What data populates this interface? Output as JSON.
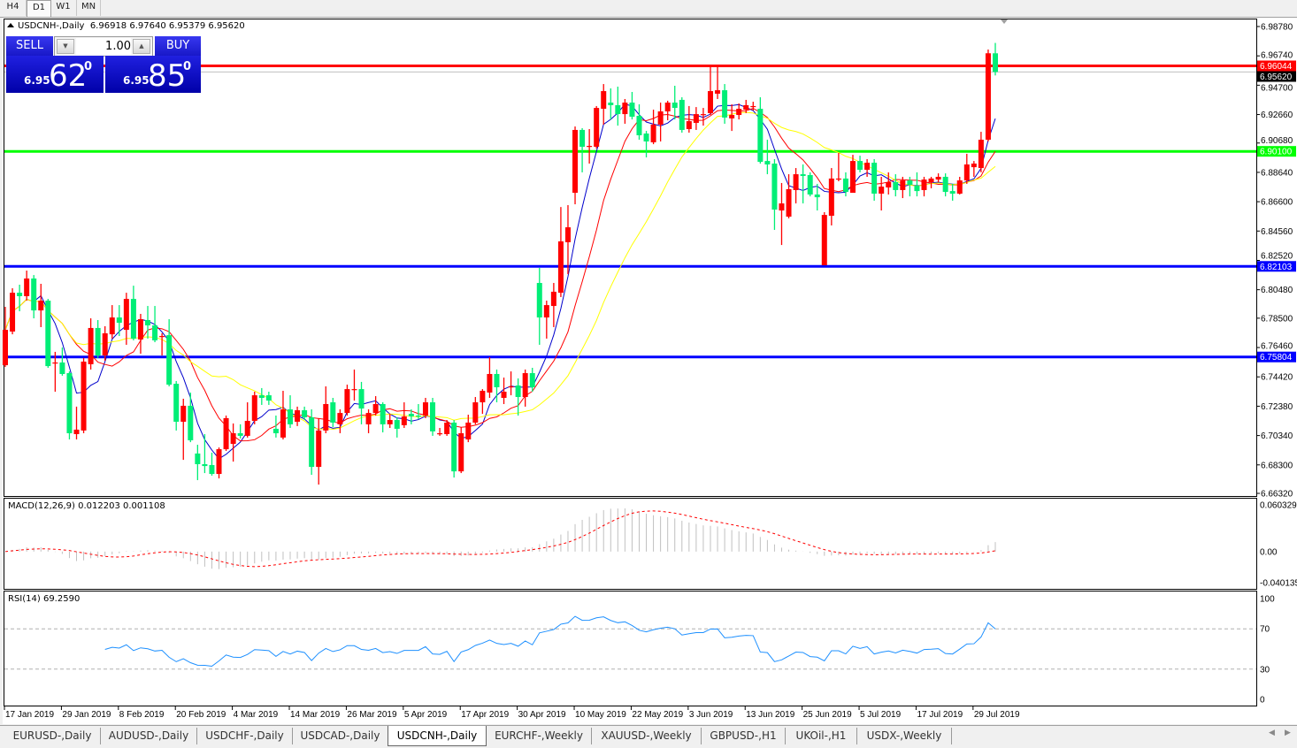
{
  "timeframes": [
    "H4",
    "D1",
    "W1",
    "MN"
  ],
  "active_timeframe": "D1",
  "chart_header": {
    "symbol": "USDCNH-,Daily",
    "ohlc_text": "6.96918 6.97640 6.95379 6.95620"
  },
  "trade_panel": {
    "sell_label": "SELL",
    "buy_label": "BUY",
    "lot": "1.00",
    "sell_price": {
      "prefix": "6.95",
      "big": "62",
      "sup": "0"
    },
    "buy_price": {
      "prefix": "6.95",
      "big": "85",
      "sup": "0"
    }
  },
  "indicators": {
    "macd_label": "MACD(12,26,9) 0.012203 0.001108",
    "rsi_label": "RSI(14) 69.2590"
  },
  "colors": {
    "up": "#ff0000",
    "down": "#00ee76",
    "ma_fast": "#0000cc",
    "ma_mid": "#ff0000",
    "ma_slow": "#ffff00",
    "macd_hist": "#c0c0c0",
    "macd_signal": "#ff0000",
    "rsi": "#1e90ff"
  },
  "chart_data": {
    "type": "candlestick",
    "symbol": "USDCNH-",
    "timeframe": "Daily",
    "ylim": [
      6.6632,
      6.9878
    ],
    "price_ticks": [
      "6.98780",
      "6.96740",
      "6.94700",
      "6.92660",
      "6.90680",
      "6.88640",
      "6.86600",
      "6.84560",
      "6.82520",
      "6.80480",
      "6.78500",
      "6.76460",
      "6.74420",
      "6.72380",
      "6.70340",
      "6.68300",
      "6.66320"
    ],
    "date_labels": [
      "17 Jan 2019",
      "29 Jan 2019",
      "8 Feb 2019",
      "20 Feb 2019",
      "4 Mar 2019",
      "14 Mar 2019",
      "26 Mar 2019",
      "5 Apr 2019",
      "17 Apr 2019",
      "30 Apr 2019",
      "10 May 2019",
      "22 May 2019",
      "3 Jun 2019",
      "13 Jun 2019",
      "25 Jun 2019",
      "5 Jul 2019",
      "17 Jul 2019",
      "29 Jul 2019"
    ],
    "levels": [
      {
        "price": "6.96044",
        "color": "#ff0000",
        "text_color": "#ffffff"
      },
      {
        "price": "6.95620",
        "color": "#000000",
        "text_color": "#ffffff",
        "line": "#c0c0c0"
      },
      {
        "price": "6.90100",
        "color": "#00ff00",
        "text_color": "#ffffff"
      },
      {
        "price": "6.82103",
        "color": "#0000ff",
        "text_color": "#ffffff"
      },
      {
        "price": "6.75804",
        "color": "#0000ff",
        "text_color": "#ffffff"
      }
    ],
    "macd": {
      "params": [
        12,
        26,
        9
      ],
      "ylim": [
        -0.040135,
        0.060329
      ],
      "tick_labels": [
        "0.060329",
        "0.00",
        "-0.040135"
      ]
    },
    "rsi": {
      "period": 14,
      "ylim": [
        0,
        100
      ],
      "levels": [
        30,
        70
      ],
      "tick_labels": [
        "100",
        "70",
        "30",
        "0"
      ]
    },
    "candles_ohlc": [
      [
        6.7523,
        6.7929,
        6.7511,
        6.7769
      ],
      [
        6.7757,
        6.8058,
        6.7738,
        6.8027
      ],
      [
        6.8027,
        6.8083,
        6.7898,
        6.8003
      ],
      [
        6.8003,
        6.8181,
        6.7972,
        6.8126
      ],
      [
        6.8126,
        6.815,
        6.7849,
        6.7904
      ],
      [
        6.7904,
        6.8089,
        6.7788,
        6.7972
      ],
      [
        6.7972,
        6.7984,
        6.7505,
        6.7517
      ],
      [
        6.7536,
        6.7616,
        6.7339,
        6.7542
      ],
      [
        6.7542,
        6.7646,
        6.745,
        6.7462
      ],
      [
        6.7468,
        6.748,
        6.7007,
        6.705
      ],
      [
        6.7044,
        6.7235,
        6.7007,
        6.7075
      ],
      [
        6.7069,
        6.7573,
        6.705,
        6.7548
      ],
      [
        6.753,
        6.7849,
        6.7493,
        6.7782
      ],
      [
        6.7782,
        6.7837,
        6.7573,
        6.7591
      ],
      [
        6.7591,
        6.7794,
        6.7554,
        6.7745
      ],
      [
        6.7738,
        6.7941,
        6.7708,
        6.7855
      ],
      [
        6.7855,
        6.7941,
        6.7726,
        6.7818
      ],
      [
        6.7769,
        6.8027,
        6.7665,
        6.7984
      ],
      [
        6.7984,
        6.8076,
        6.7696,
        6.7708
      ],
      [
        6.7702,
        6.788,
        6.7603,
        6.7843
      ],
      [
        6.7837,
        6.7935,
        6.7708,
        6.78
      ],
      [
        6.78,
        6.7935,
        6.7683,
        6.7696
      ],
      [
        6.772,
        6.7745,
        6.7591,
        6.7726
      ],
      [
        6.7732,
        6.7843,
        6.7376,
        6.7388
      ],
      [
        6.7394,
        6.7413,
        6.7069,
        6.713
      ],
      [
        6.713,
        6.729,
        6.6865,
        6.7241
      ],
      [
        6.7241,
        6.7333,
        6.6988,
        6.7001
      ],
      [
        6.6909,
        6.697,
        6.6724,
        6.6835
      ],
      [
        6.6835,
        6.7044,
        6.6773,
        6.6822
      ],
      [
        6.6829,
        6.6915,
        6.6755,
        6.6767
      ],
      [
        6.6767,
        6.6951,
        6.6736,
        6.6939
      ],
      [
        6.6939,
        6.7173,
        6.6927,
        6.7155
      ],
      [
        6.6976,
        6.7118,
        6.6853,
        6.705
      ],
      [
        6.705,
        6.7112,
        6.7014,
        6.7032
      ],
      [
        6.7032,
        6.7265,
        6.702,
        6.7136
      ],
      [
        6.7136,
        6.7339,
        6.7112,
        6.7314
      ],
      [
        6.7314,
        6.7364,
        6.7247,
        6.7296
      ],
      [
        6.7314,
        6.7339,
        6.7247,
        6.7277
      ],
      [
        6.7081,
        6.7173,
        6.702,
        6.705
      ],
      [
        6.702,
        6.7345,
        6.7007,
        6.7216
      ],
      [
        6.7216,
        6.7314,
        6.7087,
        6.7112
      ],
      [
        6.713,
        6.7235,
        6.71,
        6.721
      ],
      [
        6.721,
        6.7235,
        6.7142,
        6.7161
      ],
      [
        6.7161,
        6.7216,
        6.6761,
        6.6816
      ],
      [
        6.6816,
        6.7155,
        6.6693,
        6.7069
      ],
      [
        6.7069,
        6.7376,
        6.705,
        6.7253
      ],
      [
        6.7265,
        6.7296,
        6.7093,
        6.7124
      ],
      [
        6.7112,
        6.7216,
        6.705,
        6.7191
      ],
      [
        6.7191,
        6.7388,
        6.7173,
        6.7357
      ],
      [
        6.7351,
        6.7493,
        6.7277,
        6.7357
      ],
      [
        6.7357,
        6.7407,
        6.7112,
        6.7222
      ],
      [
        6.7112,
        6.7216,
        6.705,
        6.7191
      ],
      [
        6.7191,
        6.7308,
        6.7173,
        6.7253
      ],
      [
        6.7253,
        6.7265,
        6.7056,
        6.7112
      ],
      [
        6.7112,
        6.7185,
        6.7087,
        6.7142
      ],
      [
        6.7142,
        6.7161,
        6.702,
        6.7081
      ],
      [
        6.7106,
        6.7265,
        6.7087,
        6.7167
      ],
      [
        6.7185,
        6.7216,
        6.7112,
        6.7167
      ],
      [
        6.7173,
        6.7253,
        6.7148,
        6.7167
      ],
      [
        6.7173,
        6.7296,
        6.7155,
        6.7265
      ],
      [
        6.7265,
        6.7296,
        6.7032,
        6.7063
      ],
      [
        6.705,
        6.7087,
        6.7032,
        6.705
      ],
      [
        6.7044,
        6.7142,
        6.7032,
        6.7124
      ],
      [
        6.7124,
        6.7142,
        6.6742,
        6.6785
      ],
      [
        6.6785,
        6.7093,
        6.6773,
        6.705
      ],
      [
        6.7007,
        6.7179,
        6.6988,
        6.7124
      ],
      [
        6.7124,
        6.7302,
        6.7112,
        6.7265
      ],
      [
        6.7265,
        6.7357,
        6.7185,
        6.7345
      ],
      [
        6.7333,
        6.7579,
        6.7296,
        6.7462
      ],
      [
        6.7462,
        6.7493,
        6.7265,
        6.737
      ],
      [
        6.7296,
        6.7437,
        6.7253,
        6.7339
      ],
      [
        6.7376,
        6.748,
        6.7314,
        6.7376
      ],
      [
        6.7382,
        6.7431,
        6.7173,
        6.7302
      ],
      [
        6.7302,
        6.7493,
        6.7235,
        6.7468
      ],
      [
        6.7468,
        6.7505,
        6.7339,
        6.737
      ],
      [
        6.8095,
        6.82,
        6.7665,
        6.7855
      ],
      [
        6.7855,
        6.7972,
        6.7708,
        6.7941
      ],
      [
        6.7935,
        6.8095,
        6.7788,
        6.8034
      ],
      [
        6.8027,
        6.8623,
        6.7997,
        6.8384
      ],
      [
        6.8378,
        6.8636,
        6.8156,
        6.8482
      ],
      [
        6.8722,
        6.9183,
        6.8642,
        6.9159
      ],
      [
        6.9159,
        6.9171,
        6.8864,
        6.9042
      ],
      [
        6.9048,
        6.9165,
        6.8925,
        6.9048
      ],
      [
        6.9042,
        6.9325,
        6.903,
        6.9312
      ],
      [
        6.9306,
        6.9478,
        6.9196,
        6.9429
      ],
      [
        6.9349,
        6.9448,
        6.9232,
        6.9331
      ],
      [
        6.9331,
        6.946,
        6.9189,
        6.9269
      ],
      [
        6.9269,
        6.9374,
        6.9202,
        6.9349
      ],
      [
        6.9349,
        6.9423,
        6.9232,
        6.9251
      ],
      [
        6.9257,
        6.9337,
        6.9091,
        6.9122
      ],
      [
        6.9134,
        6.9152,
        6.8968,
        6.9079
      ],
      [
        6.9073,
        6.93,
        6.906,
        6.9196
      ],
      [
        6.9196,
        6.9349,
        6.9079,
        6.9288
      ],
      [
        6.9288,
        6.9362,
        6.9226,
        6.9349
      ],
      [
        6.9349,
        6.9466,
        6.9232,
        6.9312
      ],
      [
        6.9368,
        6.9386,
        6.914,
        6.9159
      ],
      [
        6.9165,
        6.9325,
        6.914,
        6.922
      ],
      [
        6.9208,
        6.9318,
        6.9159,
        6.9269
      ],
      [
        6.9269,
        6.9312,
        6.9189,
        6.9269
      ],
      [
        6.9276,
        6.9601,
        6.9263,
        6.9429
      ],
      [
        6.9411,
        6.9601,
        6.9374,
        6.9435
      ],
      [
        6.9435,
        6.9478,
        6.9202,
        6.9245
      ],
      [
        6.9239,
        6.9337,
        6.9152,
        6.9263
      ],
      [
        6.9263,
        6.9343,
        6.9232,
        6.9306
      ],
      [
        6.93,
        6.9368,
        6.9276,
        6.9331
      ],
      [
        6.9325,
        6.9355,
        6.9294,
        6.9325
      ],
      [
        6.9306,
        6.9386,
        6.8925,
        6.8937
      ],
      [
        6.8943,
        6.9091,
        6.8851,
        6.8919
      ],
      [
        6.8925,
        6.8956,
        6.8464,
        6.8605
      ],
      [
        6.8599,
        6.879,
        6.8359,
        6.8648
      ],
      [
        6.8556,
        6.8851,
        6.8544,
        6.8747
      ],
      [
        6.8741,
        6.8894,
        6.8648,
        6.8851
      ],
      [
        6.8851,
        6.8919,
        6.8648,
        6.8839
      ],
      [
        6.8845,
        6.8864,
        6.8697,
        6.871
      ],
      [
        6.871,
        6.8784,
        6.8599,
        6.8691
      ],
      [
        6.8218,
        6.8587,
        6.8218,
        6.8568
      ],
      [
        6.8562,
        6.8894,
        6.8495,
        6.8821
      ],
      [
        6.8821,
        6.8999,
        6.8802,
        6.8821
      ],
      [
        6.8821,
        6.8864,
        6.8697,
        6.8728
      ],
      [
        6.8722,
        6.8986,
        6.8722,
        6.8943
      ],
      [
        6.8943,
        6.898,
        6.8864,
        6.8882
      ],
      [
        6.8882,
        6.8956,
        6.8833,
        6.8931
      ],
      [
        6.8931,
        6.8956,
        6.8667,
        6.8716
      ],
      [
        6.8716,
        6.8833,
        6.8599,
        6.8765
      ],
      [
        6.8759,
        6.8864,
        6.871,
        6.8796
      ],
      [
        6.8796,
        6.8851,
        6.8697,
        6.8741
      ],
      [
        6.8741,
        6.8833,
        6.8685,
        6.8808
      ],
      [
        6.8808,
        6.8833,
        6.8697,
        6.8778
      ],
      [
        6.8771,
        6.8864,
        6.8697,
        6.8734
      ],
      [
        6.8741,
        6.8833,
        6.8697,
        6.8814
      ],
      [
        6.8796,
        6.8833,
        6.8753,
        6.8821
      ],
      [
        6.8814,
        6.8857,
        6.8796,
        6.8833
      ],
      [
        6.8833,
        6.8857,
        6.8697,
        6.8728
      ],
      [
        6.8734,
        6.8784,
        6.8667,
        6.8716
      ],
      [
        6.8716,
        6.8833,
        6.871,
        6.8808
      ],
      [
        6.8808,
        6.8993,
        6.8784,
        6.8919
      ],
      [
        6.89,
        6.8943,
        6.8833,
        6.8925
      ],
      [
        6.8894,
        6.9146,
        6.8864,
        6.9091
      ],
      [
        6.9091,
        6.9718,
        6.9079,
        6.9692
      ],
      [
        6.96918,
        6.9764,
        6.95379,
        6.9562
      ]
    ]
  },
  "symbol_tabs": [
    "EURUSD-,Daily",
    "AUDUSD-,Daily",
    "USDCHF-,Daily",
    "USDCAD-,Daily",
    "USDCNH-,Daily",
    "EURCHF-,Weekly",
    "XAUUSD-,Weekly",
    "GBPUSD-,H1",
    "UKOil-,H1",
    "USDX-,Weekly"
  ],
  "active_symbol_tab": "USDCNH-,Daily"
}
